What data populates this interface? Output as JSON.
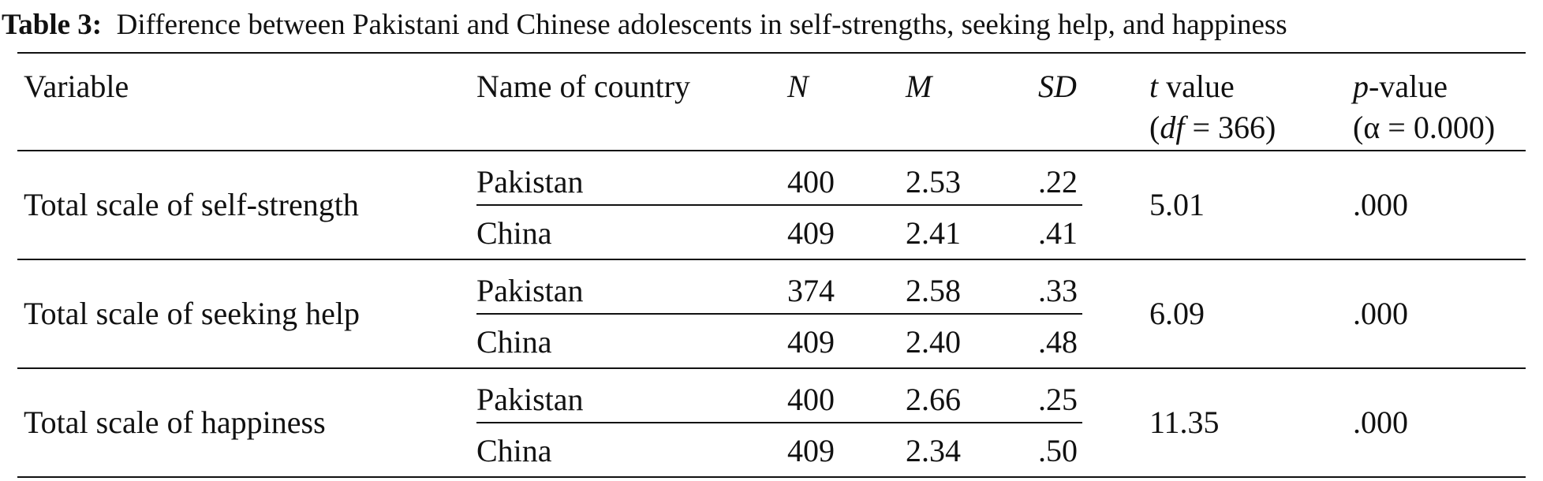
{
  "caption": {
    "label": "Table 3:",
    "text": "Difference between Pakistani and Chinese adolescents in self-strengths, seeking help, and happiness"
  },
  "header": [
    {
      "lines": [
        [
          {
            "text": "Variable",
            "italic": false
          }
        ]
      ]
    },
    {
      "lines": [
        [
          {
            "text": "Name of country",
            "italic": false
          }
        ]
      ]
    },
    {
      "lines": [
        [
          {
            "text": "N",
            "italic": true
          }
        ]
      ]
    },
    {
      "lines": [
        [
          {
            "text": "M",
            "italic": true
          }
        ]
      ]
    },
    {
      "lines": [
        [
          {
            "text": "SD",
            "italic": true
          }
        ]
      ]
    },
    {
      "lines": [
        [
          {
            "text": "t",
            "italic": true
          },
          {
            "text": " value",
            "italic": false
          }
        ],
        [
          {
            "text": "(",
            "italic": false
          },
          {
            "text": "df",
            "italic": true
          },
          {
            "text": " = 366)",
            "italic": false
          }
        ]
      ]
    },
    {
      "lines": [
        [
          {
            "text": "p",
            "italic": true
          },
          {
            "text": "-value",
            "italic": false
          }
        ],
        [
          {
            "text": "(α = 0.000)",
            "italic": false
          }
        ]
      ]
    }
  ],
  "groups": [
    {
      "variable": "Total scale of self-strength",
      "rows": [
        [
          "Pakistan",
          "400",
          "2.53",
          ".22"
        ],
        [
          "China",
          "409",
          "2.41",
          ".41"
        ]
      ],
      "t": "5.01",
      "p": ".000"
    },
    {
      "variable": "Total scale of seeking help",
      "rows": [
        [
          "Pakistan",
          "374",
          "2.58",
          ".33"
        ],
        [
          "China",
          "409",
          "2.40",
          ".48"
        ]
      ],
      "t": "6.09",
      "p": ".000"
    },
    {
      "variable": "Total scale of happiness",
      "rows": [
        [
          "Pakistan",
          "400",
          "2.66",
          ".25"
        ],
        [
          "China",
          "409",
          "2.34",
          ".50"
        ]
      ],
      "t": "11.35",
      "p": ".000"
    }
  ]
}
